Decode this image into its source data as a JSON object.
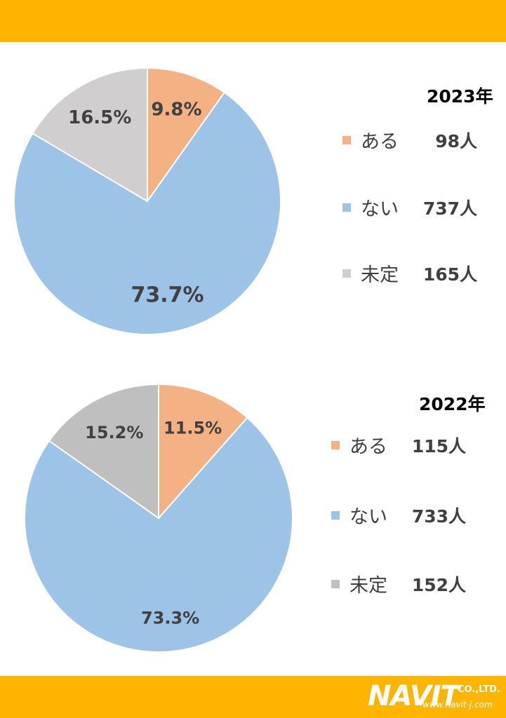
{
  "chart_data": [
    {
      "type": "pie",
      "title": "2023年",
      "categories": [
        "ある",
        "ない",
        "未定"
      ],
      "values": [
        98,
        737,
        165
      ],
      "percent_labels": [
        "9.8%",
        "73.7%",
        "16.5%"
      ],
      "count_labels": [
        "98人",
        "737人",
        "165人"
      ],
      "colors": [
        "#F4B183",
        "#9DC3E6",
        "#D0CECE"
      ],
      "legend_placement": "right"
    },
    {
      "type": "pie",
      "title": "2022年",
      "categories": [
        "ある",
        "ない",
        "未定"
      ],
      "values": [
        115,
        733,
        152
      ],
      "percent_labels": [
        "11.5%",
        "73.3%",
        "15.2%"
      ],
      "count_labels": [
        "115人",
        "733人",
        "152人"
      ],
      "colors": [
        "#F4B183",
        "#9DC3E6",
        "#BFBFBF"
      ],
      "legend_placement": "right"
    }
  ],
  "brand": {
    "logo_text": "NAVIT",
    "logo_suffix": "CO.,LTD.",
    "url_text": "www.navit-j.com",
    "band_color": "#FFB400"
  }
}
